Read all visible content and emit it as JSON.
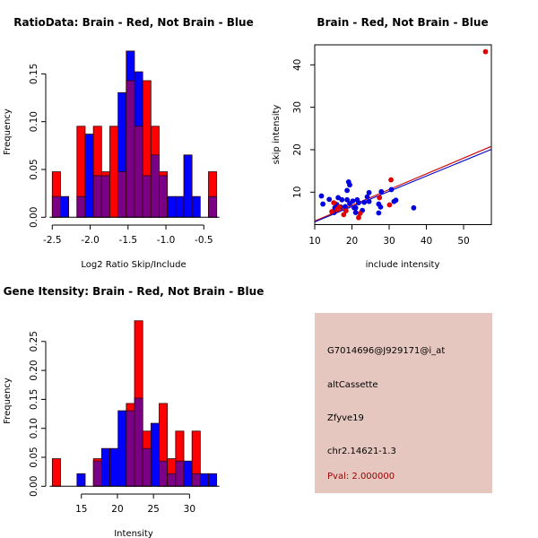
{
  "colors": {
    "brain": "#ff0000",
    "not_brain": "#0000ff",
    "overlap": "#7a0085",
    "bar_border": "#330000",
    "panel_bg": "#e6c7bf",
    "pval_text": "#990000"
  },
  "chart_data": [
    {
      "id": "ratio-hist",
      "type": "bar",
      "subtype": "overlaid-histogram",
      "title": "RatioData: Brain - Red, Not Brain - Blue",
      "xlabel": "Log2 Ratio Skip/Include",
      "ylabel": "Frequency",
      "xlim": [
        -2.5,
        -0.3
      ],
      "ylim": [
        0,
        0.17
      ],
      "xticks": [
        -2.5,
        -2.0,
        -1.5,
        -1.0,
        -0.5
      ],
      "xtick_labels": [
        "-2.5",
        "-2.0",
        "-1.5",
        "-1.0",
        "-0.5"
      ],
      "yticks": [
        0.0,
        0.05,
        0.1,
        0.15
      ],
      "ytick_labels": [
        "0.00",
        "0.05",
        "0.10",
        "0.15"
      ],
      "bin_start": -2.5,
      "bin_width": 0.1085,
      "series": [
        {
          "name": "Brain",
          "color": "red",
          "values": [
            0.0476,
            0,
            0,
            0.0952,
            0,
            0.0952,
            0.0476,
            0.0952,
            0.0476,
            0.1429,
            0.0952,
            0.1429,
            0.0952,
            0.0476,
            0,
            0,
            0,
            0,
            0,
            0.0476
          ]
        },
        {
          "name": "Not Brain",
          "color": "blue",
          "values": [
            0.0217,
            0.0217,
            0,
            0.0217,
            0.087,
            0.0435,
            0.0435,
            0,
            0.1304,
            0.1739,
            0.1522,
            0.0435,
            0.0652,
            0.0435,
            0.0217,
            0.0217,
            0.0652,
            0.0217,
            0,
            0.0217
          ]
        }
      ],
      "grid": false
    },
    {
      "id": "intensity-scatter",
      "type": "scatter",
      "title": "Brain - Red, Not Brain - Blue",
      "xlabel": "include intensity",
      "ylabel": "skip intensity",
      "xlim": [
        10,
        57.5
      ],
      "ylim": [
        2.3,
        44.7
      ],
      "xticks": [
        10,
        20,
        30,
        40,
        50
      ],
      "xtick_labels": [
        "10",
        "20",
        "30",
        "40",
        "50"
      ],
      "yticks": [
        10,
        20,
        30,
        40
      ],
      "ytick_labels": [
        "10",
        "20",
        "30",
        "40"
      ],
      "series": [
        {
          "name": "Not Brain",
          "color": "blue",
          "points": [
            [
              11.8,
              9.1
            ],
            [
              12.2,
              7.2
            ],
            [
              13.9,
              8.3
            ],
            [
              16.3,
              8.7
            ],
            [
              17.3,
              8.2
            ],
            [
              18.7,
              8.2
            ],
            [
              19.1,
              12.4
            ],
            [
              19.4,
              11.7
            ],
            [
              18.7,
              10.4
            ],
            [
              15.9,
              7.1
            ],
            [
              15.4,
              6.3
            ],
            [
              15.2,
              5.2
            ],
            [
              18.2,
              6.6
            ],
            [
              19.4,
              7.3
            ],
            [
              20.6,
              6.3
            ],
            [
              21.0,
              5.2
            ],
            [
              21.4,
              8.2
            ],
            [
              21.8,
              7.5
            ],
            [
              23.3,
              7.6
            ],
            [
              24.1,
              8.9
            ],
            [
              24.6,
              9.9
            ],
            [
              24.6,
              7.8
            ],
            [
              22.8,
              5.7
            ],
            [
              27.2,
              7.2
            ],
            [
              27.7,
              6.5
            ],
            [
              27.2,
              5.1
            ],
            [
              27.9,
              10.1
            ],
            [
              30.6,
              10.6
            ],
            [
              31.3,
              7.8
            ],
            [
              31.8,
              8.1
            ],
            [
              36.6,
              6.3
            ],
            [
              17.0,
              6.5
            ],
            [
              20.2,
              7.9
            ],
            [
              21.0,
              6.3
            ]
          ],
          "fit_line": {
            "x": [
              10,
              57.5
            ],
            "y": [
              3.0,
              20.1
            ]
          }
        },
        {
          "name": "Brain",
          "color": "red",
          "points": [
            [
              15.1,
              7.5
            ],
            [
              14.6,
              5.4
            ],
            [
              16.6,
              6.5
            ],
            [
              17.8,
              4.7
            ],
            [
              18.4,
              5.6
            ],
            [
              21.8,
              4.0
            ],
            [
              22.2,
              5.0
            ],
            [
              27.4,
              8.7
            ],
            [
              30.5,
              12.9
            ],
            [
              30.1,
              7.0
            ],
            [
              16.0,
              5.9
            ],
            [
              55.9,
              43.1
            ]
          ],
          "fit_line": {
            "x": [
              10,
              57.5
            ],
            "y": [
              3.2,
              20.8
            ]
          }
        }
      ],
      "grid": false
    },
    {
      "id": "gene-intensity-hist",
      "type": "bar",
      "subtype": "overlaid-histogram",
      "title": "Gene Itensity: Brain - Red, Not Brain - Blue",
      "xlabel": "Intensity",
      "ylabel": "Frequency",
      "xlim": [
        11,
        33.8
      ],
      "ylim": [
        0,
        0.29
      ],
      "xticks": [
        15,
        20,
        25,
        30
      ],
      "xtick_labels": [
        "15",
        "20",
        "25",
        "30"
      ],
      "yticks": [
        0.0,
        0.05,
        0.1,
        0.15,
        0.2,
        0.25
      ],
      "ytick_labels": [
        "0.00",
        "0.05",
        "0.10",
        "0.15",
        "0.20",
        "0.25"
      ],
      "bin_start": 10.97,
      "bin_width": 1.14,
      "series": [
        {
          "name": "Brain",
          "color": "red",
          "values": [
            0.0476,
            0,
            0,
            0,
            0,
            0.0476,
            0,
            0,
            0,
            0.1429,
            0.2857,
            0.0952,
            0,
            0.1429,
            0.0476,
            0.0952,
            0,
            0.0952,
            0,
            0
          ]
        },
        {
          "name": "Not Brain",
          "color": "blue",
          "values": [
            0,
            0,
            0,
            0.0217,
            0,
            0.0435,
            0.0652,
            0.0652,
            0.1304,
            0.1304,
            0.1522,
            0.0652,
            0.1087,
            0.0435,
            0.0217,
            0.0435,
            0.0435,
            0.0217,
            0.0217,
            0.0217
          ]
        }
      ],
      "grid": false
    }
  ],
  "info_panel": {
    "probe_id": "G7014696@J929171@i_at",
    "event_type": "altCassette",
    "gene": "Zfyve19",
    "location": "chr2.14621-1.3",
    "pval": "Pval: 2.000000"
  }
}
